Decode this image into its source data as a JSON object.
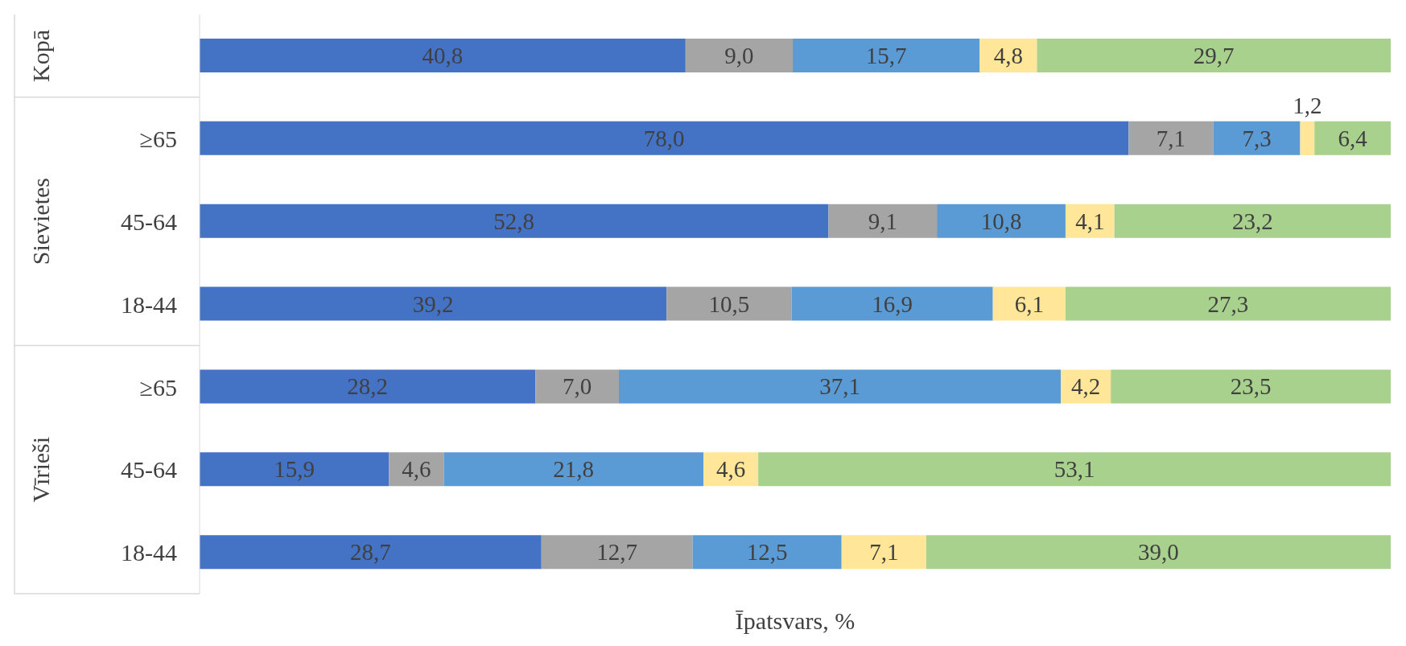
{
  "chart_data": {
    "type": "bar",
    "orientation": "horizontal",
    "stacked": true,
    "xlabel": "Īpatsvars, %",
    "categories": [
      null,
      "≥65",
      "45-64",
      "18-44",
      "≥65",
      "45-64",
      "18-44"
    ],
    "annotations": [
      "Kopā",
      "Sievietes",
      "Vīrieši"
    ],
    "tick_labels": "y",
    "series": [
      {
        "color": "#4472c4",
        "values": [
          40.8,
          78.0,
          52.8,
          39.2,
          28.2,
          15.9,
          28.7
        ],
        "value_labels": [
          "40,8",
          "78,0",
          "52,8",
          "39,2",
          "28,2",
          "15,9",
          "28,7"
        ]
      },
      {
        "color": "#a5a5a5",
        "values": [
          9.0,
          7.1,
          9.1,
          10.5,
          7.0,
          4.6,
          12.7
        ],
        "value_labels": [
          "9,0",
          "7,1",
          "9,1",
          "10,5",
          "7,0",
          "4,6",
          "12,7"
        ]
      },
      {
        "color": "#5b9bd5",
        "values": [
          15.7,
          7.3,
          10.8,
          16.9,
          37.1,
          21.8,
          12.5
        ],
        "value_labels": [
          "15,7",
          "7,3",
          "10,8",
          "16,9",
          "37,1",
          "21,8",
          "12,5"
        ]
      },
      {
        "color": "#ffe699",
        "values": [
          4.8,
          1.2,
          4.1,
          6.1,
          4.2,
          4.6,
          7.1
        ],
        "value_labels": [
          "4,8",
          "1,2",
          "4,1",
          "6,1",
          "4,2",
          "4,6",
          "7,1"
        ]
      },
      {
        "color": "#a9d18e",
        "values": [
          29.7,
          6.4,
          23.2,
          27.3,
          23.5,
          53.1,
          39.0
        ],
        "value_labels": [
          "29,7",
          "6,4",
          "23,2",
          "27,3",
          "23,5",
          "53,1",
          "39,0"
        ]
      }
    ]
  }
}
